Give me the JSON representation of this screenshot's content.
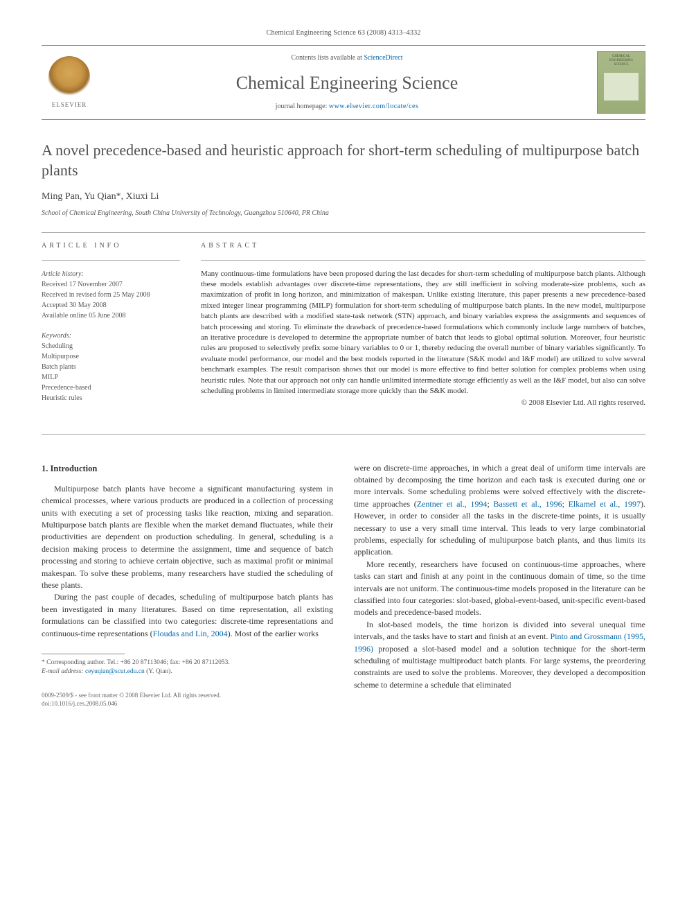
{
  "header": {
    "journal_citation": "Chemical Engineering Science 63 (2008) 4313–4332",
    "contents_prefix": "Contents lists available at ",
    "contents_link": "ScienceDirect",
    "journal_name": "Chemical Engineering Science",
    "homepage_prefix": "journal homepage: ",
    "homepage_url": "www.elsevier.com/locate/ces",
    "elsevier_label": "ELSEVIER",
    "cover_line1": "CHEMICAL",
    "cover_line2": "ENGINEERING",
    "cover_line3": "SCIENCE"
  },
  "article": {
    "title": "A novel precedence-based and heuristic approach for short-term scheduling of multipurpose batch plants",
    "authors": "Ming Pan, Yu Qian*, Xiuxi Li",
    "affiliation": "School of Chemical Engineering, South China University of Technology, Guangzhou 510640, PR China"
  },
  "info": {
    "section_label": "ARTICLE INFO",
    "history_label": "Article history:",
    "received": "Received 17 November 2007",
    "revised": "Received in revised form 25 May 2008",
    "accepted": "Accepted 30 May 2008",
    "online": "Available online 05 June 2008",
    "keywords_label": "Keywords:",
    "kw1": "Scheduling",
    "kw2": "Multipurpose",
    "kw3": "Batch plants",
    "kw4": "MILP",
    "kw5": "Precedence-based",
    "kw6": "Heuristic rules"
  },
  "abstract": {
    "section_label": "ABSTRACT",
    "text": "Many continuous-time formulations have been proposed during the last decades for short-term scheduling of multipurpose batch plants. Although these models establish advantages over discrete-time representations, they are still inefficient in solving moderate-size problems, such as maximization of profit in long horizon, and minimization of makespan. Unlike existing literature, this paper presents a new precedence-based mixed integer linear programming (MILP) formulation for short-term scheduling of multipurpose batch plants. In the new model, multipurpose batch plants are described with a modified state-task network (STN) approach, and binary variables express the assignments and sequences of batch processing and storing. To eliminate the drawback of precedence-based formulations which commonly include large numbers of batches, an iterative procedure is developed to determine the appropriate number of batch that leads to global optimal solution. Moreover, four heuristic rules are proposed to selectively prefix some binary variables to 0 or 1, thereby reducing the overall number of binary variables significantly. To evaluate model performance, our model and the best models reported in the literature (S&K model and I&F model) are utilized to solve several benchmark examples. The result comparison shows that our model is more effective to find better solution for complex problems when using heuristic rules. Note that our approach not only can handle unlimited intermediate storage efficiently as well as the I&F model, but also can solve scheduling problems in limited intermediate storage more quickly than the S&K model.",
    "copyright": "© 2008 Elsevier Ltd. All rights reserved."
  },
  "body": {
    "heading": "1. Introduction",
    "col1_p1": "Multipurpose batch plants have become a significant manufacturing system in chemical processes, where various products are produced in a collection of processing units with executing a set of processing tasks like reaction, mixing and separation. Multipurpose batch plants are flexible when the market demand fluctuates, while their productivities are dependent on production scheduling. In general, scheduling is a decision making process to determine the assignment, time and sequence of batch processing and storing to achieve certain objective, such as maximal profit or minimal makespan. To solve these problems, many researchers have studied the scheduling of these plants.",
    "col1_p2a": "During the past couple of decades, scheduling of multipurpose batch plants has been investigated in many literatures. Based on time representation, all existing formulations can be classified into two categories: discrete-time representations and continuous-time representations (",
    "col1_p2_ref": "Floudas and Lin, 2004",
    "col1_p2b": "). Most of the earlier works",
    "col2_p1a": "were on discrete-time approaches, in which a great deal of uniform time intervals are obtained by decomposing the time horizon and each task is executed during one or more intervals. Some scheduling problems were solved effectively with the discrete-time approaches (",
    "col2_p1_ref1": "Zentner et al., 1994",
    "col2_p1_sep": "; ",
    "col2_p1_ref2": "Bassett et al., 1996; Elkamel et al., 1997",
    "col2_p1b": "). However, in order to consider all the tasks in the discrete-time points, it is usually necessary to use a very small time interval. This leads to very large combinatorial problems, especially for scheduling of multipurpose batch plants, and thus limits its application.",
    "col2_p2": "More recently, researchers have focused on continuous-time approaches, where tasks can start and finish at any point in the continuous domain of time, so the time intervals are not uniform. The continuous-time models proposed in the literature can be classified into four categories: slot-based, global-event-based, unit-specific event-based models and precedence-based models.",
    "col2_p3a": "In slot-based models, the time horizon is divided into several unequal time intervals, and the tasks have to start and finish at an event. ",
    "col2_p3_ref": "Pinto and Grossmann (1995, 1996)",
    "col2_p3b": " proposed a slot-based model and a solution technique for the short-term scheduling of multistage multiproduct batch plants. For large systems, the preordering constraints are used to solve the problems. Moreover, they developed a decomposition scheme to determine a schedule that eliminated"
  },
  "footnote": {
    "corresponding": "* Corresponding author. Tel.: +86 20 87113046; fax: +86 20 87112053.",
    "email_label": "E-mail address: ",
    "email": "ceyuqian@scut.edu.cn",
    "email_suffix": " (Y. Qian)."
  },
  "footer": {
    "line1": "0009-2509/$ - see front matter © 2008 Elsevier Ltd. All rights reserved.",
    "line2": "doi:10.1016/j.ces.2008.05.046"
  },
  "colors": {
    "link": "#0066aa",
    "text": "#333333",
    "muted": "#555555",
    "divider": "#aaaaaa"
  }
}
